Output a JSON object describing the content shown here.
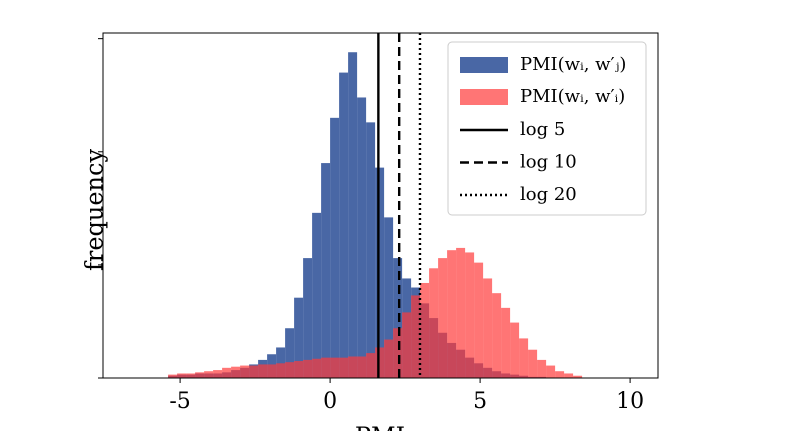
{
  "chart_data": {
    "type": "histogram",
    "x_label": "PMI",
    "y_label": "frequency",
    "bins": [
      -5.4,
      -5.1,
      -4.8,
      -4.5,
      -4.2,
      -3.9,
      -3.6,
      -3.3,
      -3.0,
      -2.7,
      -2.4,
      -2.1,
      -1.8,
      -1.5,
      -1.2,
      -0.9,
      -0.6,
      -0.3,
      0,
      0.3,
      0.6,
      0.9,
      1.2,
      1.5,
      1.8,
      2.1,
      2.4,
      2.7,
      3.0,
      3.3,
      3.6,
      3.9,
      4.2,
      4.5,
      4.8,
      5.1,
      5.4,
      5.7,
      6.0,
      6.3,
      6.6,
      6.9,
      7.2,
      7.5,
      7.8,
      8.1,
      8.4
    ],
    "series": [
      {
        "name": "PMI(wᵢ, w′ⱼ)",
        "color": "#3f5fa0",
        "opacity": 0.95,
        "values": [
          0.02,
          0.03,
          0.03,
          0.04,
          0.04,
          0.04,
          0.05,
          0.07,
          0.09,
          0.12,
          0.16,
          0.21,
          0.27,
          0.44,
          0.71,
          1.06,
          1.46,
          1.9,
          2.3,
          2.7,
          2.88,
          2.48,
          2.26,
          1.86,
          1.42,
          1.06,
          0.88,
          0.8,
          0.66,
          0.53,
          0.4,
          0.31,
          0.25,
          0.18,
          0.13,
          0.09,
          0.06,
          0.04,
          0.03,
          0.02,
          0.01,
          0.01,
          0,
          0,
          0,
          0
        ]
      },
      {
        "name": "PMI(wᵢ, w′ᵢ)",
        "color": "#ff3b3b",
        "opacity": 0.7,
        "values": [
          0.03,
          0.04,
          0.04,
          0.05,
          0.06,
          0.07,
          0.09,
          0.1,
          0.11,
          0.11,
          0.12,
          0.12,
          0.13,
          0.14,
          0.15,
          0.16,
          0.17,
          0.18,
          0.18,
          0.18,
          0.19,
          0.19,
          0.22,
          0.27,
          0.34,
          0.44,
          0.58,
          0.73,
          0.84,
          0.97,
          1.06,
          1.13,
          1.15,
          1.11,
          1.02,
          0.88,
          0.75,
          0.62,
          0.49,
          0.35,
          0.25,
          0.16,
          0.11,
          0.06,
          0.04,
          0.02
        ]
      }
    ],
    "lines": [
      {
        "name": "log 5",
        "value": 1.609,
        "style": "solid",
        "color": "#000000"
      },
      {
        "name": "log 10",
        "value": 2.303,
        "style": "dashed",
        "color": "#000000"
      },
      {
        "name": "log 20",
        "value": 2.996,
        "style": "dotted",
        "color": "#000000"
      }
    ],
    "xlim": [
      -7.57,
      10.93
    ],
    "xticks": [
      -5,
      0,
      5,
      10
    ],
    "ylim": [
      0,
      3.05
    ],
    "yticks": [
      0,
      1,
      2,
      3
    ],
    "legend": "upper right"
  }
}
